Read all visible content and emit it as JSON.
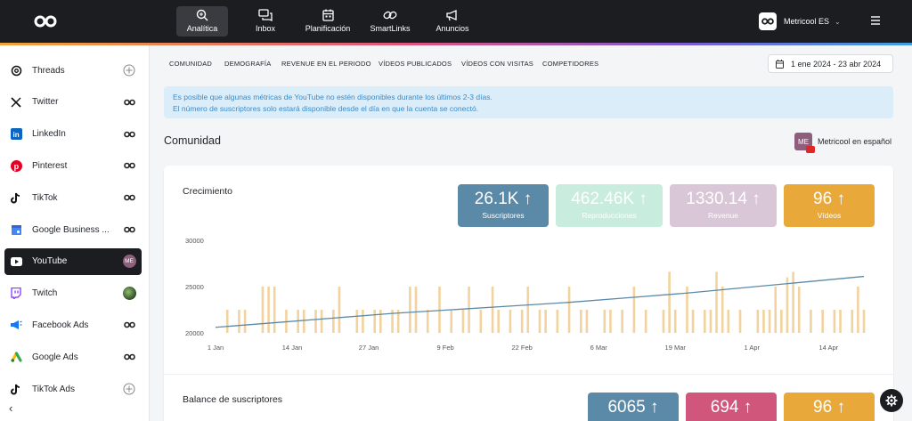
{
  "topnav": {
    "items": [
      {
        "label": "Analítica",
        "icon": "analytics-magnifier-icon",
        "active": true
      },
      {
        "label": "Inbox",
        "icon": "inbox-chat-icon"
      },
      {
        "label": "Planificación",
        "icon": "calendar-icon"
      },
      {
        "label": "SmartLinks",
        "icon": "link-icon"
      },
      {
        "label": "Anuncios",
        "icon": "megaphone-icon"
      }
    ],
    "account": {
      "name": "Metricool ES"
    }
  },
  "sidebar": {
    "items": [
      {
        "label": "Threads",
        "icon": "threads-icon",
        "right": "add"
      },
      {
        "label": "Twitter",
        "icon": "x-twitter-icon",
        "right": "link"
      },
      {
        "label": "LinkedIn",
        "icon": "linkedin-icon",
        "right": "link"
      },
      {
        "label": "Pinterest",
        "icon": "pinterest-icon",
        "right": "link"
      },
      {
        "label": "TikTok",
        "icon": "tiktok-icon",
        "right": "link"
      },
      {
        "label": "Google Business ...",
        "icon": "google-business-icon",
        "right": "link"
      },
      {
        "label": "YouTube",
        "icon": "youtube-icon",
        "right": "avatar",
        "active": true
      },
      {
        "label": "Twitch",
        "icon": "twitch-icon",
        "right": "avatar"
      },
      {
        "label": "Facebook Ads",
        "icon": "facebook-ads-icon",
        "right": "link"
      },
      {
        "label": "Google Ads",
        "icon": "google-ads-icon",
        "right": "link"
      },
      {
        "label": "TikTok Ads",
        "icon": "tiktok-ads-icon",
        "right": "add"
      }
    ],
    "youtube_avatar": "ME"
  },
  "tabs": [
    "COMUNIDAD",
    "DEMOGRAFÍA",
    "REVENUE EN EL PERIODO",
    "VÍDEOS PUBLICADOS",
    "VÍDEOS CON VISITAS",
    "COMPETIDORES"
  ],
  "date_range": "1 ene 2024 - 23 abr 2024",
  "notice": {
    "line1": "Es posible que algunas métricas de YouTube no estén disponibles durante los últimos 2-3 días.",
    "line2": "El número de suscriptores solo estará disponible desde el día en que la cuenta se conectó."
  },
  "section": {
    "title": "Comunidad",
    "profile_name": "Metricool en español",
    "profile_initials": "ME"
  },
  "growth": {
    "title": "Crecimiento",
    "kpis": [
      {
        "value": "26.1K",
        "arrow": "↑",
        "label": "Suscriptores",
        "color": "#5a8aa8",
        "text_color": "#ffffff"
      },
      {
        "value": "462.46K",
        "arrow": "↑",
        "label": "Reproducciones",
        "color": "#c8ecde",
        "text_color": "#ffffff"
      },
      {
        "value": "1330.14",
        "arrow": "↑",
        "label": "Revenue",
        "color": "#d9c6d6",
        "text_color": "#ffffff"
      },
      {
        "value": "96",
        "arrow": "↑",
        "label": "Vídeos",
        "color": "#e9a93a",
        "text_color": "#ffffff"
      }
    ]
  },
  "balance": {
    "title": "Balance de suscriptores",
    "kpis": [
      {
        "value": "6065",
        "arrow": "↑",
        "color": "#5a8aa8"
      },
      {
        "value": "694",
        "arrow": "↑",
        "color": "#d0577b"
      },
      {
        "value": "96",
        "arrow": "↑",
        "color": "#e9a93a"
      }
    ]
  },
  "chart_data": {
    "type": "bar",
    "y_ticks": [
      "30000",
      "25000",
      "20000"
    ],
    "ylim": [
      20000,
      30000
    ],
    "x_tick_labels": [
      "1 Jan",
      "14 Jan",
      "27 Jan",
      "9 Feb",
      "22 Feb",
      "6 Mar",
      "19 Mar",
      "1 Apr",
      "14 Apr"
    ],
    "x_tick_days": [
      0,
      13,
      26,
      39,
      52,
      65,
      78,
      91,
      104
    ],
    "line_color": "#5a8aa8",
    "bar_color": "#f2d29f",
    "subscribers_line": [
      {
        "day": 0,
        "value": 20600
      },
      {
        "day": 10,
        "value": 21100
      },
      {
        "day": 20,
        "value": 21600
      },
      {
        "day": 30,
        "value": 22100
      },
      {
        "day": 40,
        "value": 22500
      },
      {
        "day": 50,
        "value": 22900
      },
      {
        "day": 60,
        "value": 23300
      },
      {
        "day": 70,
        "value": 23800
      },
      {
        "day": 80,
        "value": 24300
      },
      {
        "day": 90,
        "value": 24900
      },
      {
        "day": 100,
        "value": 25500
      },
      {
        "day": 110,
        "value": 26100
      }
    ],
    "bars": [
      {
        "day": 2,
        "value": 22500
      },
      {
        "day": 4,
        "value": 22500
      },
      {
        "day": 5,
        "value": 22500
      },
      {
        "day": 8,
        "value": 22500
      },
      {
        "day": 9,
        "value": 25000
      },
      {
        "day": 10,
        "value": 25000
      },
      {
        "day": 12,
        "value": 22500
      },
      {
        "day": 14,
        "value": 22500
      },
      {
        "day": 15,
        "value": 22500
      },
      {
        "day": 17,
        "value": 22500
      },
      {
        "day": 18,
        "value": 22500
      },
      {
        "day": 20,
        "value": 22500
      },
      {
        "day": 21,
        "value": 25000
      },
      {
        "day": 24,
        "value": 22500
      },
      {
        "day": 25,
        "value": 22500
      },
      {
        "day": 27,
        "value": 22500
      },
      {
        "day": 28,
        "value": 22500
      },
      {
        "day": 30,
        "value": 22500
      },
      {
        "day": 31,
        "value": 22500
      },
      {
        "day": 33,
        "value": 22500
      },
      {
        "day": 34,
        "value": 25000
      },
      {
        "day": 36,
        "value": 22500
      },
      {
        "day": 38,
        "value": 25000
      },
      {
        "day": 40,
        "value": 22500
      },
      {
        "day": 42,
        "value": 22500
      },
      {
        "day": 43,
        "value": 25000
      },
      {
        "day": 45,
        "value": 22500
      },
      {
        "day": 47,
        "value": 25000
      },
      {
        "day": 48,
        "value": 22500
      },
      {
        "day": 50,
        "value": 22500
      },
      {
        "day": 52,
        "value": 22500
      },
      {
        "day": 53,
        "value": 25000
      },
      {
        "day": 55,
        "value": 22500
      },
      {
        "day": 56,
        "value": 22500
      },
      {
        "day": 58,
        "value": 22500
      },
      {
        "day": 60,
        "value": 25000
      },
      {
        "day": 62,
        "value": 22500
      },
      {
        "day": 63,
        "value": 22500
      },
      {
        "day": 66,
        "value": 22500
      },
      {
        "day": 67,
        "value": 22500
      },
      {
        "day": 69,
        "value": 22500
      },
      {
        "day": 71,
        "value": 25000
      },
      {
        "day": 73,
        "value": 22500
      },
      {
        "day": 76,
        "value": 22500
      },
      {
        "day": 78,
        "value": 22500
      },
      {
        "day": 80,
        "value": 25000
      },
      {
        "day": 81,
        "value": 22500
      },
      {
        "day": 83,
        "value": 22500
      },
      {
        "day": 84,
        "value": 22500
      },
      {
        "day": 86,
        "value": 22500
      },
      {
        "day": 87,
        "value": 22500
      },
      {
        "day": 89,
        "value": 22500
      },
      {
        "day": 92,
        "value": 22500
      },
      {
        "day": 93,
        "value": 22500
      },
      {
        "day": 94,
        "value": 22500
      },
      {
        "day": 96,
        "value": 22500
      },
      {
        "day": 98,
        "value": 22500
      },
      {
        "day": 99,
        "value": 25000
      },
      {
        "day": 101,
        "value": 22500
      },
      {
        "day": 103,
        "value": 22500
      },
      {
        "day": 105,
        "value": 22500
      },
      {
        "day": 106,
        "value": 22500
      },
      {
        "day": 108,
        "value": 22500
      },
      {
        "day": 110,
        "value": 22500
      }
    ],
    "tall_bars": [
      {
        "day": 8,
        "value": 25000
      },
      {
        "day": 33,
        "value": 25000
      },
      {
        "day": 77,
        "value": 26600
      },
      {
        "day": 85,
        "value": 26600
      },
      {
        "day": 86,
        "value": 25000
      },
      {
        "day": 95,
        "value": 25000
      },
      {
        "day": 97,
        "value": 26000
      },
      {
        "day": 98,
        "value": 26600
      },
      {
        "day": 109,
        "value": 25000
      }
    ]
  }
}
